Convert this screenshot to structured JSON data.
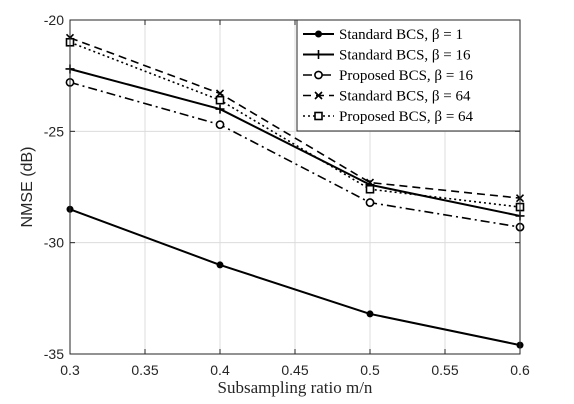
{
  "chart_data": {
    "type": "line",
    "title": "",
    "xlabel": "Subsampling ratio m/n",
    "ylabel": "NMSE (dB)",
    "xlim": [
      0.3,
      0.6
    ],
    "ylim": [
      -35,
      -20
    ],
    "xticks": [
      "0.3",
      "0.35",
      "0.4",
      "0.45",
      "0.5",
      "0.55",
      "0.6"
    ],
    "yticks": [
      "-20",
      "-25",
      "-30",
      "-35"
    ],
    "grid": true,
    "legend_position": "top-right",
    "x": [
      0.3,
      0.4,
      0.5,
      0.6
    ],
    "series": [
      {
        "name": "Standard BCS, β = 1",
        "values": [
          -28.5,
          -31.0,
          -33.2,
          -34.6
        ],
        "dash": "solid",
        "marker": "filled-circle",
        "width": 2
      },
      {
        "name": "Standard BCS, β = 16",
        "values": [
          -22.2,
          -24.0,
          -27.4,
          -28.8
        ],
        "dash": "solid",
        "marker": "plus",
        "width": 2
      },
      {
        "name": "Proposed BCS, β = 16",
        "values": [
          -22.8,
          -24.7,
          -28.2,
          -29.3
        ],
        "dash": "dashdot",
        "marker": "open-circle",
        "width": 1.6
      },
      {
        "name": "Standard BCS, β = 64",
        "values": [
          -20.8,
          -23.3,
          -27.3,
          -28.0
        ],
        "dash": "dashed",
        "marker": "x",
        "width": 1.6
      },
      {
        "name": "Proposed BCS, β = 64",
        "values": [
          -21.0,
          -23.6,
          -27.6,
          -28.4
        ],
        "dash": "dotted",
        "marker": "open-square",
        "width": 1.6
      }
    ]
  },
  "legend": {
    "entries": [
      {
        "name": "Standard BCS, β = 1"
      },
      {
        "name": "Standard BCS, β = 16"
      },
      {
        "name": "Proposed BCS, β = 16"
      },
      {
        "name": "Standard BCS, β = 64"
      },
      {
        "name": "Proposed BCS, β = 64"
      }
    ]
  },
  "colors": {
    "line": "#000000",
    "grid": "#dcdcdc",
    "axis": "#262626",
    "background": "#ffffff"
  }
}
